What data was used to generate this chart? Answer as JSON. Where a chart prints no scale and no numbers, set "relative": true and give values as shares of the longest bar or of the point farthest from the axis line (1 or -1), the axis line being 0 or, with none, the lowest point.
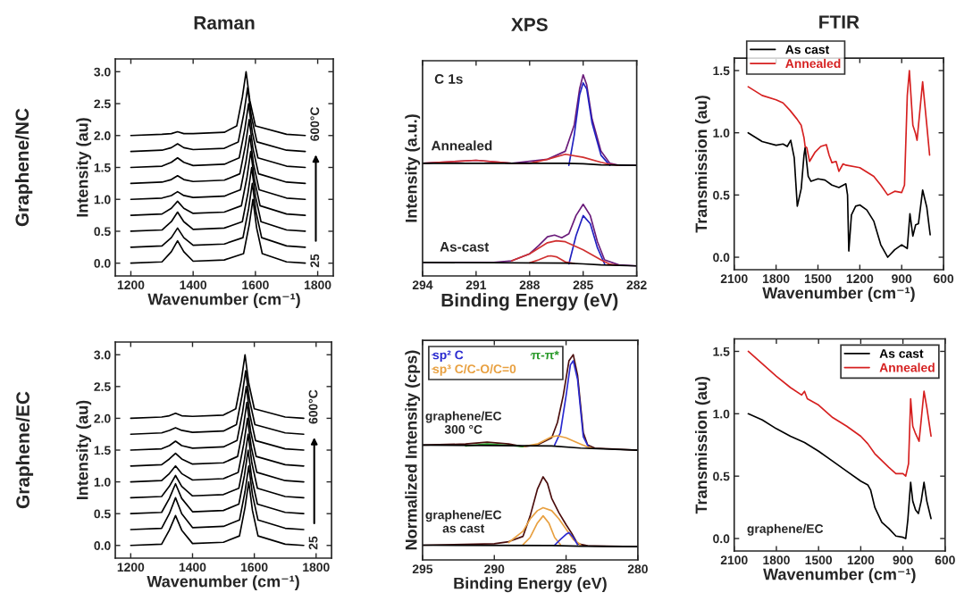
{
  "chart_data": [
    {
      "type": "line",
      "title": "Raman",
      "xlabel": "Wavenumber (cm⁻¹)",
      "ylabel": "Intensity (au)",
      "xlim": [
        1150,
        1850
      ],
      "ylim": [
        -0.2,
        3.2
      ],
      "xticks": [
        1200,
        1400,
        1600,
        1800
      ],
      "yticks": [
        {
          "value": 0,
          "label": "0.0"
        },
        {
          "value": 0.5,
          "label": "0.5"
        },
        {
          "value": 1,
          "label": "1.0"
        },
        {
          "value": 1.5,
          "label": "1.5"
        },
        {
          "value": 2,
          "label": "2.0"
        },
        {
          "value": 2.5,
          "label": "2.5"
        },
        {
          "value": 3,
          "label": "3.0"
        }
      ],
      "annotations": [
        "Graphene/NC",
        "600°C",
        "25"
      ],
      "series": [
        {
          "color": "#000000",
          "x": [
            1200,
            1300,
            1330,
            1350,
            1370,
            1400,
            1500,
            1562,
            1580,
            1592,
            1604,
            1622,
            1700,
            1760
          ],
          "values": [
            0,
            0.02,
            0.18,
            0.35,
            0.18,
            0.03,
            0.05,
            0.15,
            0.6,
            1.0,
            0.55,
            0.15,
            0.02,
            0
          ]
        },
        {
          "color": "#000000",
          "x": [
            1200,
            1300,
            1330,
            1350,
            1370,
            1400,
            1500,
            1560,
            1578,
            1590,
            1602,
            1620,
            1700,
            1760
          ],
          "values": [
            0.25,
            0.27,
            0.4,
            0.55,
            0.4,
            0.28,
            0.3,
            0.4,
            0.85,
            1.25,
            0.8,
            0.4,
            0.27,
            0.25
          ]
        },
        {
          "color": "#000000",
          "x": [
            1200,
            1300,
            1330,
            1350,
            1370,
            1400,
            1500,
            1558,
            1576,
            1588,
            1600,
            1618,
            1700,
            1760
          ],
          "values": [
            0.5,
            0.52,
            0.65,
            0.8,
            0.65,
            0.53,
            0.55,
            0.65,
            1.1,
            1.5,
            1.05,
            0.65,
            0.52,
            0.5
          ]
        },
        {
          "color": "#000000",
          "x": [
            1200,
            1300,
            1330,
            1350,
            1370,
            1400,
            1500,
            1555,
            1573,
            1585,
            1597,
            1615,
            1700,
            1760
          ],
          "values": [
            0.75,
            0.77,
            0.86,
            0.97,
            0.86,
            0.78,
            0.8,
            0.9,
            1.35,
            1.75,
            1.3,
            0.9,
            0.77,
            0.75
          ]
        },
        {
          "color": "#000000",
          "x": [
            1200,
            1300,
            1330,
            1350,
            1370,
            1400,
            1500,
            1552,
            1570,
            1582,
            1594,
            1612,
            1700,
            1760
          ],
          "values": [
            1.0,
            1.02,
            1.06,
            1.12,
            1.06,
            1.03,
            1.05,
            1.15,
            1.6,
            2.0,
            1.55,
            1.15,
            1.02,
            1.0
          ]
        },
        {
          "color": "#000000",
          "x": [
            1200,
            1300,
            1330,
            1350,
            1370,
            1400,
            1500,
            1550,
            1568,
            1580,
            1592,
            1610,
            1700,
            1760
          ],
          "values": [
            1.25,
            1.27,
            1.31,
            1.37,
            1.31,
            1.28,
            1.3,
            1.4,
            1.85,
            2.25,
            1.8,
            1.4,
            1.27,
            1.25
          ]
        },
        {
          "color": "#000000",
          "x": [
            1200,
            1300,
            1330,
            1350,
            1370,
            1400,
            1500,
            1548,
            1566,
            1578,
            1590,
            1608,
            1700,
            1760
          ],
          "values": [
            1.5,
            1.52,
            1.58,
            1.65,
            1.58,
            1.53,
            1.55,
            1.65,
            2.1,
            2.5,
            2.05,
            1.65,
            1.52,
            1.5
          ]
        },
        {
          "color": "#000000",
          "x": [
            1200,
            1300,
            1330,
            1350,
            1370,
            1400,
            1500,
            1545,
            1563,
            1575,
            1587,
            1605,
            1700,
            1760
          ],
          "values": [
            1.75,
            1.77,
            1.81,
            1.87,
            1.81,
            1.78,
            1.8,
            1.9,
            2.35,
            2.75,
            2.3,
            1.9,
            1.77,
            1.75
          ]
        },
        {
          "color": "#000000",
          "x": [
            1200,
            1300,
            1330,
            1350,
            1370,
            1400,
            1500,
            1540,
            1558,
            1570,
            1582,
            1600,
            1700,
            1760
          ],
          "values": [
            2.0,
            2.02,
            2.03,
            2.06,
            2.03,
            2.03,
            2.05,
            2.15,
            2.6,
            3.0,
            2.55,
            2.15,
            2.02,
            2.0
          ]
        }
      ]
    },
    {
      "type": "line",
      "title": "XPS",
      "xlabel": "Binding Energy (eV)",
      "ylabel": "Intensity (a.u.)",
      "relative": true,
      "xlim": [
        294,
        282
      ],
      "xticks": [
        294,
        291,
        288,
        285,
        282
      ],
      "annotations": [
        "C 1s",
        "Annealed",
        "As-cast"
      ],
      "series": [
        {
          "color": "#6a1b7a",
          "x": [
            294,
            291,
            289,
            288,
            287,
            286,
            285.5,
            285.2,
            285,
            284.8,
            284.5,
            284,
            283.5,
            283,
            282
          ],
          "values": [
            0.56,
            0.575,
            0.56,
            0.57,
            0.58,
            0.62,
            0.75,
            0.93,
            1.0,
            0.95,
            0.78,
            0.62,
            0.56,
            0.55,
            0.55
          ]
        },
        {
          "color": "#2020c0",
          "x": [
            285.8,
            285.5,
            285.2,
            285,
            284.8,
            284.5,
            284,
            283.5
          ],
          "values": [
            0.55,
            0.7,
            0.9,
            0.96,
            0.93,
            0.76,
            0.6,
            0.55
          ]
        },
        {
          "color": "#d03030",
          "x": [
            294,
            291,
            289,
            288,
            287,
            286,
            285,
            284,
            283.5,
            283
          ],
          "values": [
            0.56,
            0.575,
            0.56,
            0.56,
            0.58,
            0.605,
            0.59,
            0.565,
            0.555,
            0.55
          ]
        },
        {
          "color": "#000000",
          "x": [
            294,
            286,
            285,
            284,
            282
          ],
          "values": [
            0.56,
            0.56,
            0.558,
            0.552,
            0.55
          ]
        },
        {
          "color": "#6a1b7a",
          "x": [
            294,
            290,
            289,
            288,
            287.5,
            287,
            286.6,
            286.2,
            285.8,
            285.4,
            285,
            284.6,
            284.2,
            283.8,
            283,
            282
          ],
          "values": [
            0.067,
            0.067,
            0.075,
            0.11,
            0.15,
            0.195,
            0.203,
            0.19,
            0.21,
            0.3,
            0.356,
            0.3,
            0.17,
            0.08,
            0.055,
            0.05
          ]
        },
        {
          "color": "#2020c0",
          "x": [
            285.8,
            285.4,
            285,
            284.6,
            284.2,
            283.8
          ],
          "values": [
            0.06,
            0.2,
            0.3,
            0.26,
            0.14,
            0.06
          ]
        },
        {
          "color": "#d03030",
          "x": [
            289,
            288,
            287,
            286.5,
            286,
            285,
            284,
            283.5,
            283
          ],
          "values": [
            0.075,
            0.11,
            0.165,
            0.175,
            0.17,
            0.13,
            0.08,
            0.058,
            0.052
          ]
        },
        {
          "color": "#d03030",
          "x": [
            288,
            287.5,
            287,
            286.8,
            286.5,
            286,
            285.5
          ],
          "values": [
            0.065,
            0.08,
            0.098,
            0.1,
            0.095,
            0.07,
            0.062
          ]
        },
        {
          "color": "#000000",
          "x": [
            294,
            286,
            285,
            284,
            282
          ],
          "values": [
            0.067,
            0.064,
            0.06,
            0.055,
            0.05
          ]
        }
      ]
    },
    {
      "type": "line",
      "title": "FTIR",
      "xlabel": "Wavenumber (cm⁻¹)",
      "ylabel": "Transmission (au)",
      "xlim": [
        2100,
        600
      ],
      "ylim": [
        -0.1,
        1.6
      ],
      "xticks": [
        2100,
        1800,
        1500,
        1200,
        900,
        600
      ],
      "yticks": [
        {
          "value": 0,
          "label": "0.0"
        },
        {
          "value": 0.5,
          "label": "0.5"
        },
        {
          "value": 1,
          "label": "1.0"
        },
        {
          "value": 1.5,
          "label": "1.5"
        }
      ],
      "legend": "top left",
      "series": [
        {
          "name": "As cast",
          "color": "#000000",
          "x": [
            2000,
            1900,
            1800,
            1750,
            1720,
            1695,
            1670,
            1648,
            1620,
            1600,
            1592,
            1570,
            1550,
            1500,
            1450,
            1400,
            1350,
            1300,
            1288,
            1279,
            1260,
            1230,
            1200,
            1150,
            1100,
            1050,
            1000,
            950,
            900,
            860,
            841,
            820,
            800,
            780,
            750,
            720,
            696
          ],
          "values": [
            1.0,
            0.93,
            0.9,
            0.91,
            0.89,
            0.94,
            0.8,
            0.41,
            0.55,
            0.82,
            0.88,
            0.65,
            0.61,
            0.63,
            0.62,
            0.58,
            0.56,
            0.59,
            0.5,
            0.05,
            0.34,
            0.41,
            0.42,
            0.38,
            0.29,
            0.1,
            0.0,
            0.06,
            0.1,
            0.07,
            0.35,
            0.17,
            0.26,
            0.27,
            0.54,
            0.4,
            0.18
          ]
        },
        {
          "name": "Annealed",
          "color": "#d62020",
          "x": [
            2000,
            1900,
            1800,
            1750,
            1700,
            1650,
            1620,
            1600,
            1592,
            1580,
            1560,
            1520,
            1480,
            1440,
            1420,
            1400,
            1370,
            1350,
            1320,
            1300,
            1200,
            1100,
            1050,
            1000,
            950,
            900,
            880,
            860,
            845,
            820,
            800,
            790,
            750,
            720,
            700
          ],
          "values": [
            1.37,
            1.3,
            1.265,
            1.24,
            1.18,
            1.11,
            1.06,
            0.96,
            0.89,
            0.88,
            0.77,
            0.845,
            0.89,
            0.905,
            0.82,
            0.76,
            0.77,
            0.69,
            0.75,
            0.74,
            0.72,
            0.65,
            0.58,
            0.5,
            0.53,
            0.52,
            0.58,
            1.3,
            1.5,
            1.06,
            0.99,
            0.94,
            1.41,
            1.06,
            0.82
          ]
        }
      ]
    },
    {
      "type": "line",
      "xlabel": "Wavenumber (cm⁻¹)",
      "ylabel": "Intensity (au)",
      "xlim": [
        1150,
        1850
      ],
      "ylim": [
        -0.2,
        3.2
      ],
      "xticks": [
        1200,
        1400,
        1600,
        1800
      ],
      "yticks": [
        {
          "value": 0,
          "label": "0.0"
        },
        {
          "value": 0.5,
          "label": "0.5"
        },
        {
          "value": 1,
          "label": "1.0"
        },
        {
          "value": 1.5,
          "label": "1.5"
        },
        {
          "value": 2,
          "label": "2.0"
        },
        {
          "value": 2.5,
          "label": "2.5"
        },
        {
          "value": 3,
          "label": "3.0"
        }
      ],
      "annotations": [
        "Graphene/EC",
        "600°C",
        "25"
      ],
      "series": [
        {
          "color": "#000000",
          "x": [
            1200,
            1300,
            1325,
            1345,
            1365,
            1400,
            1500,
            1552,
            1570,
            1582,
            1594,
            1612,
            1700,
            1760
          ],
          "values": [
            0,
            0.02,
            0.24,
            0.47,
            0.24,
            0.03,
            0.05,
            0.15,
            0.6,
            1.0,
            0.55,
            0.15,
            0.02,
            0
          ]
        },
        {
          "color": "#000000",
          "x": [
            1200,
            1300,
            1325,
            1345,
            1365,
            1400,
            1500,
            1552,
            1570,
            1582,
            1594,
            1612,
            1700,
            1760
          ],
          "values": [
            0.25,
            0.27,
            0.5,
            0.75,
            0.5,
            0.28,
            0.3,
            0.4,
            0.85,
            1.25,
            0.8,
            0.4,
            0.27,
            0.25
          ]
        },
        {
          "color": "#000000",
          "x": [
            1200,
            1300,
            1325,
            1345,
            1365,
            1400,
            1500,
            1550,
            1568,
            1580,
            1592,
            1610,
            1700,
            1760
          ],
          "values": [
            0.5,
            0.52,
            0.74,
            0.97,
            0.74,
            0.53,
            0.55,
            0.65,
            1.1,
            1.5,
            1.05,
            0.65,
            0.52,
            0.5
          ]
        },
        {
          "color": "#000000",
          "x": [
            1200,
            1300,
            1325,
            1345,
            1365,
            1400,
            1500,
            1550,
            1568,
            1580,
            1592,
            1610,
            1700,
            1760
          ],
          "values": [
            0.75,
            0.77,
            0.93,
            1.1,
            0.93,
            0.78,
            0.8,
            0.9,
            1.35,
            1.75,
            1.3,
            0.9,
            0.77,
            0.75
          ]
        },
        {
          "color": "#000000",
          "x": [
            1200,
            1300,
            1325,
            1345,
            1365,
            1400,
            1500,
            1548,
            1566,
            1578,
            1590,
            1608,
            1700,
            1760
          ],
          "values": [
            1.0,
            1.02,
            1.13,
            1.25,
            1.13,
            1.03,
            1.05,
            1.15,
            1.6,
            2.0,
            1.55,
            1.15,
            1.02,
            1.0
          ]
        },
        {
          "color": "#000000",
          "x": [
            1200,
            1300,
            1325,
            1345,
            1365,
            1400,
            1500,
            1546,
            1564,
            1576,
            1588,
            1606,
            1700,
            1760
          ],
          "values": [
            1.25,
            1.27,
            1.36,
            1.45,
            1.36,
            1.28,
            1.3,
            1.4,
            1.85,
            2.25,
            1.8,
            1.4,
            1.27,
            1.25
          ]
        },
        {
          "color": "#000000",
          "x": [
            1200,
            1300,
            1325,
            1345,
            1365,
            1400,
            1500,
            1544,
            1562,
            1574,
            1586,
            1604,
            1700,
            1760
          ],
          "values": [
            1.5,
            1.52,
            1.57,
            1.64,
            1.57,
            1.53,
            1.55,
            1.65,
            2.1,
            2.5,
            2.05,
            1.65,
            1.52,
            1.5
          ]
        },
        {
          "color": "#000000",
          "x": [
            1200,
            1300,
            1325,
            1345,
            1365,
            1400,
            1500,
            1542,
            1560,
            1572,
            1584,
            1602,
            1700,
            1760
          ],
          "values": [
            1.75,
            1.77,
            1.81,
            1.85,
            1.81,
            1.78,
            1.8,
            1.9,
            2.35,
            2.75,
            2.3,
            1.9,
            1.77,
            1.75
          ]
        },
        {
          "color": "#000000",
          "x": [
            1200,
            1300,
            1325,
            1345,
            1365,
            1400,
            1500,
            1540,
            1558,
            1570,
            1582,
            1600,
            1700,
            1760
          ],
          "values": [
            2.0,
            2.02,
            2.04,
            2.08,
            2.04,
            2.03,
            2.05,
            2.15,
            2.6,
            3.0,
            2.55,
            2.15,
            2.02,
            2.0
          ]
        }
      ]
    },
    {
      "type": "line",
      "xlabel": "Binding Energy (eV)",
      "ylabel": "Normalized Intensity (cps)",
      "relative": true,
      "xlim": [
        295,
        280
      ],
      "xticks": [
        295,
        290,
        285,
        280
      ],
      "legend": "top left",
      "annotations": [
        "graphene/EC\n300 °C",
        "graphene/EC\nas cast"
      ],
      "series": [
        {
          "color": "#4a0d0d",
          "x": [
            295,
            292,
            290.5,
            289,
            288,
            287,
            286,
            285.6,
            285.2,
            284.8,
            284.5,
            284.2,
            283.8,
            283.5,
            283,
            280
          ],
          "values": [
            0.56,
            0.565,
            0.574,
            0.565,
            0.552,
            0.56,
            0.595,
            0.67,
            0.8,
            0.97,
            1.0,
            0.9,
            0.62,
            0.56,
            0.545,
            0.535
          ]
        },
        {
          "name": "sp² C",
          "color": "#2a2ad0",
          "x": [
            285.8,
            285.4,
            285,
            284.7,
            284.5,
            284.2,
            283.8,
            283.4
          ],
          "values": [
            0.56,
            0.62,
            0.8,
            0.95,
            0.97,
            0.88,
            0.6,
            0.545
          ]
        },
        {
          "name": "sp³ C/C-O/C=0",
          "color": "#e8a040",
          "x": [
            288,
            287,
            286,
            285.6,
            285,
            284.5,
            284,
            283.5,
            283.2
          ],
          "values": [
            0.552,
            0.565,
            0.6,
            0.605,
            0.595,
            0.58,
            0.565,
            0.55,
            0.545
          ]
        },
        {
          "name": "π-π*",
          "color": "#2a9a2a",
          "x": [
            292,
            290.5,
            289,
            288
          ],
          "values": [
            0.555,
            0.565,
            0.558,
            0.552
          ]
        },
        {
          "color": "#000000",
          "x": [
            295,
            286,
            284,
            280
          ],
          "values": [
            0.56,
            0.555,
            0.545,
            0.535
          ]
        },
        {
          "color": "#4a0d0d",
          "x": [
            295,
            290,
            289,
            288,
            287.5,
            287,
            286.6,
            286.3,
            286,
            285.5,
            285,
            284.6,
            284.2,
            283.5,
            283,
            280
          ],
          "values": [
            0.072,
            0.079,
            0.089,
            0.115,
            0.215,
            0.344,
            0.405,
            0.373,
            0.3,
            0.23,
            0.172,
            0.129,
            0.079,
            0.069,
            0.068,
            0.065
          ]
        },
        {
          "color": "#e8a040",
          "x": [
            289,
            288,
            287.5,
            287,
            286.6,
            286,
            285.5,
            285,
            284.5,
            284
          ],
          "values": [
            0.085,
            0.14,
            0.2,
            0.24,
            0.255,
            0.24,
            0.2,
            0.15,
            0.1,
            0.075
          ]
        },
        {
          "color": "#e8a040",
          "x": [
            288,
            287.5,
            287,
            286.6,
            286.2,
            285.8,
            285.4
          ],
          "values": [
            0.075,
            0.11,
            0.18,
            0.215,
            0.18,
            0.11,
            0.075
          ]
        },
        {
          "color": "#2a2ad0",
          "x": [
            285.8,
            285.4,
            285,
            284.8,
            284.5,
            284.2
          ],
          "values": [
            0.072,
            0.1,
            0.125,
            0.133,
            0.11,
            0.075
          ]
        },
        {
          "color": "#000000",
          "x": [
            295,
            286,
            284,
            280
          ],
          "values": [
            0.072,
            0.07,
            0.067,
            0.065
          ]
        }
      ]
    },
    {
      "type": "line",
      "xlabel": "Wavenumber (cm⁻¹)",
      "ylabel": "Transmission (au)",
      "xlim": [
        2100,
        600
      ],
      "ylim": [
        -0.1,
        1.6
      ],
      "xticks": [
        2100,
        1800,
        1500,
        1200,
        900,
        600
      ],
      "yticks": [
        {
          "value": 0,
          "label": "0.0"
        },
        {
          "value": 0.5,
          "label": "0.5"
        },
        {
          "value": 1,
          "label": "1.0"
        },
        {
          "value": 1.5,
          "label": "1.5"
        }
      ],
      "legend": "top right",
      "annotations": [
        "graphene/EC"
      ],
      "series": [
        {
          "name": "As cast",
          "color": "#000000",
          "x": [
            2000,
            1900,
            1800,
            1700,
            1600,
            1500,
            1400,
            1300,
            1200,
            1150,
            1130,
            1100,
            1050,
            1000,
            950,
            900,
            880,
            865,
            845,
            830,
            810,
            790,
            770,
            750,
            730,
            700
          ],
          "values": [
            1.0,
            0.95,
            0.88,
            0.82,
            0.77,
            0.7,
            0.62,
            0.54,
            0.46,
            0.43,
            0.39,
            0.25,
            0.13,
            0.08,
            0.02,
            0.01,
            0.0,
            0.15,
            0.45,
            0.3,
            0.23,
            0.2,
            0.3,
            0.45,
            0.3,
            0.16
          ]
        },
        {
          "name": "Annealed",
          "color": "#d62020",
          "x": [
            2000,
            1900,
            1800,
            1700,
            1620,
            1600,
            1580,
            1500,
            1400,
            1300,
            1200,
            1150,
            1100,
            1000,
            950,
            900,
            880,
            860,
            845,
            830,
            810,
            785,
            770,
            750,
            730,
            700
          ],
          "values": [
            1.5,
            1.4,
            1.3,
            1.21,
            1.15,
            1.18,
            1.12,
            1.07,
            0.97,
            0.9,
            0.82,
            0.76,
            0.68,
            0.57,
            0.52,
            0.52,
            0.5,
            0.6,
            1.12,
            0.9,
            0.84,
            0.78,
            0.95,
            1.18,
            1.05,
            0.82
          ]
        }
      ]
    }
  ]
}
